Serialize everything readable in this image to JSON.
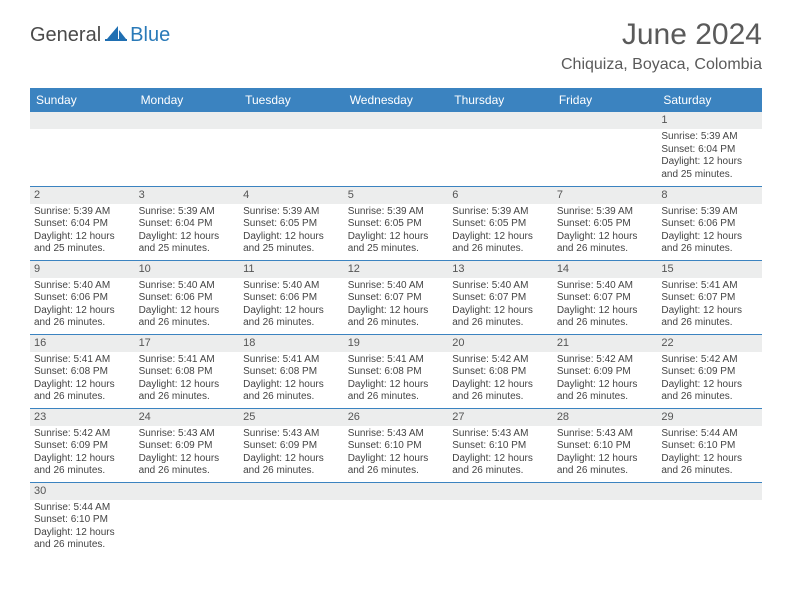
{
  "logo": {
    "text1": "General",
    "text2": "Blue"
  },
  "title": "June 2024",
  "location": "Chiquiza, Boyaca, Colombia",
  "colors": {
    "header_bg": "#3b83c0",
    "header_text": "#ffffff",
    "daybar_bg": "#eceded",
    "rule": "#3b83c0",
    "brand_blue": "#2a7ab8",
    "brand_gray": "#4a4a4a"
  },
  "weekdays": [
    "Sunday",
    "Monday",
    "Tuesday",
    "Wednesday",
    "Thursday",
    "Friday",
    "Saturday"
  ],
  "weeks": [
    [
      null,
      null,
      null,
      null,
      null,
      null,
      {
        "n": "1",
        "sr": "5:39 AM",
        "ss": "6:04 PM",
        "dl": "12 hours and 25 minutes."
      }
    ],
    [
      {
        "n": "2",
        "sr": "5:39 AM",
        "ss": "6:04 PM",
        "dl": "12 hours and 25 minutes."
      },
      {
        "n": "3",
        "sr": "5:39 AM",
        "ss": "6:04 PM",
        "dl": "12 hours and 25 minutes."
      },
      {
        "n": "4",
        "sr": "5:39 AM",
        "ss": "6:05 PM",
        "dl": "12 hours and 25 minutes."
      },
      {
        "n": "5",
        "sr": "5:39 AM",
        "ss": "6:05 PM",
        "dl": "12 hours and 25 minutes."
      },
      {
        "n": "6",
        "sr": "5:39 AM",
        "ss": "6:05 PM",
        "dl": "12 hours and 26 minutes."
      },
      {
        "n": "7",
        "sr": "5:39 AM",
        "ss": "6:05 PM",
        "dl": "12 hours and 26 minutes."
      },
      {
        "n": "8",
        "sr": "5:39 AM",
        "ss": "6:06 PM",
        "dl": "12 hours and 26 minutes."
      }
    ],
    [
      {
        "n": "9",
        "sr": "5:40 AM",
        "ss": "6:06 PM",
        "dl": "12 hours and 26 minutes."
      },
      {
        "n": "10",
        "sr": "5:40 AM",
        "ss": "6:06 PM",
        "dl": "12 hours and 26 minutes."
      },
      {
        "n": "11",
        "sr": "5:40 AM",
        "ss": "6:06 PM",
        "dl": "12 hours and 26 minutes."
      },
      {
        "n": "12",
        "sr": "5:40 AM",
        "ss": "6:07 PM",
        "dl": "12 hours and 26 minutes."
      },
      {
        "n": "13",
        "sr": "5:40 AM",
        "ss": "6:07 PM",
        "dl": "12 hours and 26 minutes."
      },
      {
        "n": "14",
        "sr": "5:40 AM",
        "ss": "6:07 PM",
        "dl": "12 hours and 26 minutes."
      },
      {
        "n": "15",
        "sr": "5:41 AM",
        "ss": "6:07 PM",
        "dl": "12 hours and 26 minutes."
      }
    ],
    [
      {
        "n": "16",
        "sr": "5:41 AM",
        "ss": "6:08 PM",
        "dl": "12 hours and 26 minutes."
      },
      {
        "n": "17",
        "sr": "5:41 AM",
        "ss": "6:08 PM",
        "dl": "12 hours and 26 minutes."
      },
      {
        "n": "18",
        "sr": "5:41 AM",
        "ss": "6:08 PM",
        "dl": "12 hours and 26 minutes."
      },
      {
        "n": "19",
        "sr": "5:41 AM",
        "ss": "6:08 PM",
        "dl": "12 hours and 26 minutes."
      },
      {
        "n": "20",
        "sr": "5:42 AM",
        "ss": "6:08 PM",
        "dl": "12 hours and 26 minutes."
      },
      {
        "n": "21",
        "sr": "5:42 AM",
        "ss": "6:09 PM",
        "dl": "12 hours and 26 minutes."
      },
      {
        "n": "22",
        "sr": "5:42 AM",
        "ss": "6:09 PM",
        "dl": "12 hours and 26 minutes."
      }
    ],
    [
      {
        "n": "23",
        "sr": "5:42 AM",
        "ss": "6:09 PM",
        "dl": "12 hours and 26 minutes."
      },
      {
        "n": "24",
        "sr": "5:43 AM",
        "ss": "6:09 PM",
        "dl": "12 hours and 26 minutes."
      },
      {
        "n": "25",
        "sr": "5:43 AM",
        "ss": "6:09 PM",
        "dl": "12 hours and 26 minutes."
      },
      {
        "n": "26",
        "sr": "5:43 AM",
        "ss": "6:10 PM",
        "dl": "12 hours and 26 minutes."
      },
      {
        "n": "27",
        "sr": "5:43 AM",
        "ss": "6:10 PM",
        "dl": "12 hours and 26 minutes."
      },
      {
        "n": "28",
        "sr": "5:43 AM",
        "ss": "6:10 PM",
        "dl": "12 hours and 26 minutes."
      },
      {
        "n": "29",
        "sr": "5:44 AM",
        "ss": "6:10 PM",
        "dl": "12 hours and 26 minutes."
      }
    ],
    [
      {
        "n": "30",
        "sr": "5:44 AM",
        "ss": "6:10 PM",
        "dl": "12 hours and 26 minutes."
      },
      null,
      null,
      null,
      null,
      null,
      null
    ]
  ],
  "labels": {
    "sunrise": "Sunrise:",
    "sunset": "Sunset:",
    "daylight": "Daylight:"
  }
}
